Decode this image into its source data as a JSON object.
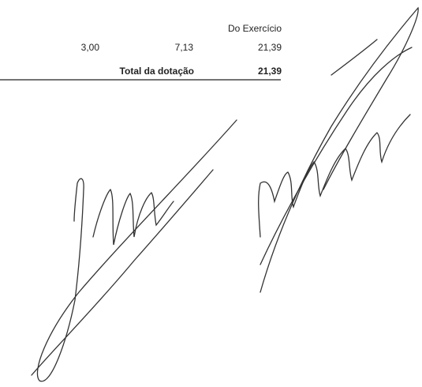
{
  "table": {
    "column_header": "Do Exercício",
    "rows": [
      [
        "3,00",
        "7,13",
        "21,39"
      ]
    ],
    "total": {
      "label": "Total da dotação",
      "value": "21,39"
    }
  }
}
